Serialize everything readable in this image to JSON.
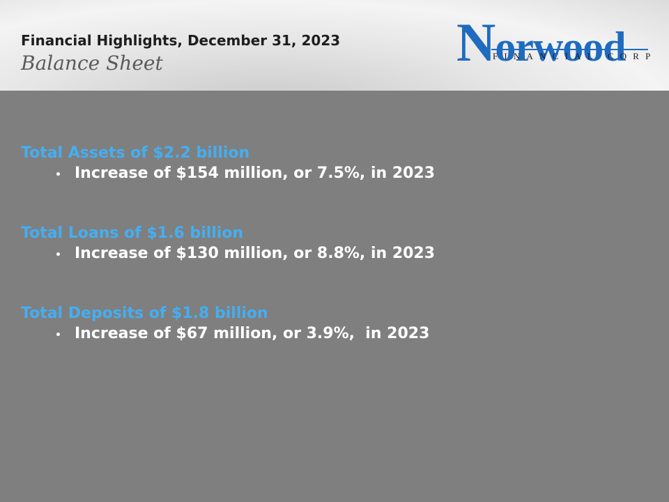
{
  "header": {
    "title": "Financial Highlights, December 31, 2023",
    "subtitle": "Balance Sheet"
  },
  "logo": {
    "name": "Norwood",
    "tagline": "FINANCIAL CORP"
  },
  "sections": [
    {
      "heading": "Total Assets of $2.2 billion",
      "bullets": [
        "Increase of $154 million, or 7.5%, in 2023"
      ]
    },
    {
      "heading": "Total Loans of $1.6 billion",
      "bullets": [
        "Increase of $130 million, or 8.8%, in 2023"
      ]
    },
    {
      "heading": "Total Deposits of $1.8 billion",
      "bullets": [
        "Increase of $67 million, or 3.9%,  in 2023"
      ]
    }
  ]
}
